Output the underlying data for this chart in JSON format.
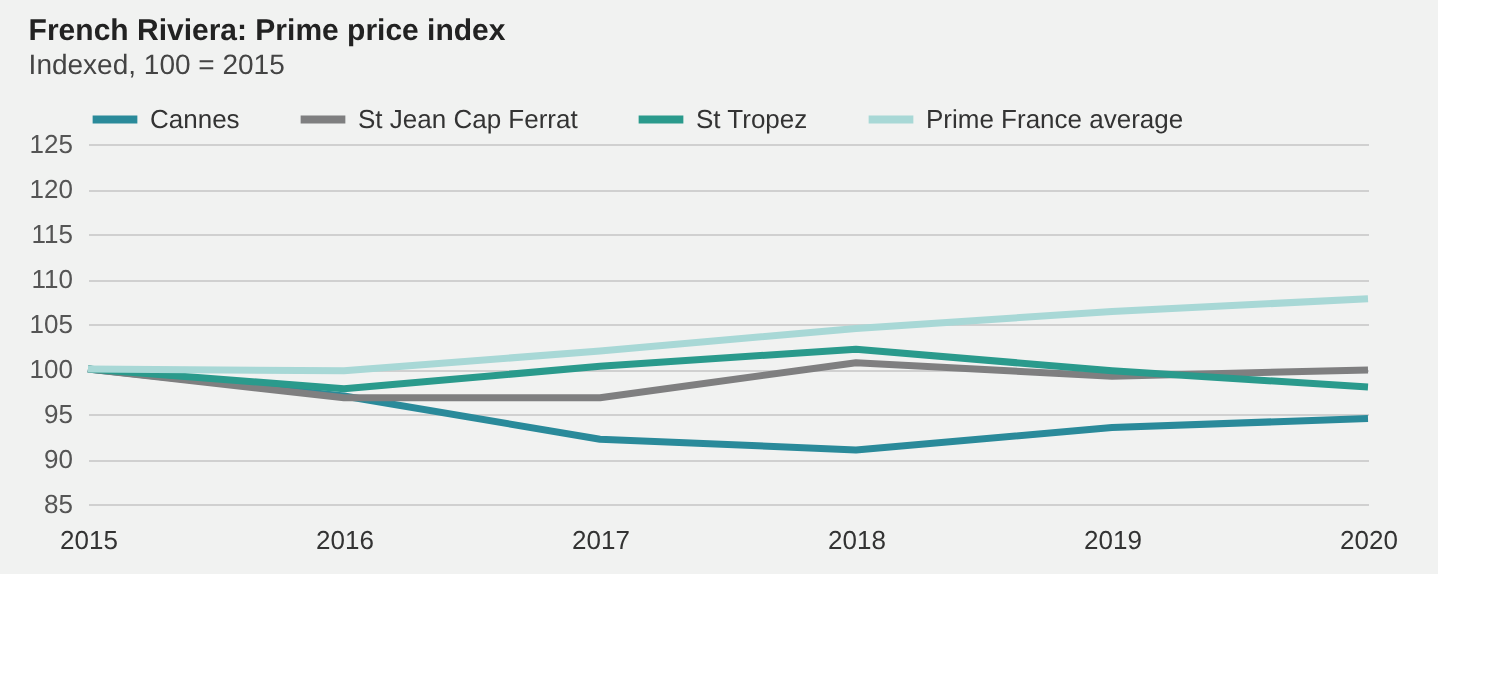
{
  "chart_data": {
    "type": "line",
    "title": "French Riviera: Prime price index",
    "subtitle": "Indexed, 100 = 2015",
    "categories": [
      "2015",
      "2016",
      "2017",
      "2018",
      "2019",
      "2020"
    ],
    "series": [
      {
        "name": "Cannes",
        "color": "#2a8a9a",
        "values": [
          100,
          97,
          92.2,
          91,
          93.5,
          94.5
        ]
      },
      {
        "name": "St Jean Cap Ferrat",
        "color": "#7f7f80",
        "values": [
          100,
          96.8,
          96.8,
          100.7,
          99.2,
          99.9
        ]
      },
      {
        "name": "St Tropez",
        "color": "#2a9a8c",
        "values": [
          100,
          97.8,
          100.3,
          102.2,
          99.8,
          98
        ]
      },
      {
        "name": "Prime France average",
        "color": "#a8d8d6",
        "values": [
          100,
          99.8,
          102,
          104.5,
          106.4,
          107.8
        ]
      }
    ],
    "ylim": [
      85,
      125
    ],
    "yticks": [
      85,
      90,
      95,
      100,
      105,
      110,
      115,
      120,
      125
    ],
    "grid": "y",
    "legend": "top left",
    "marker": "none",
    "line_style": "solid"
  }
}
